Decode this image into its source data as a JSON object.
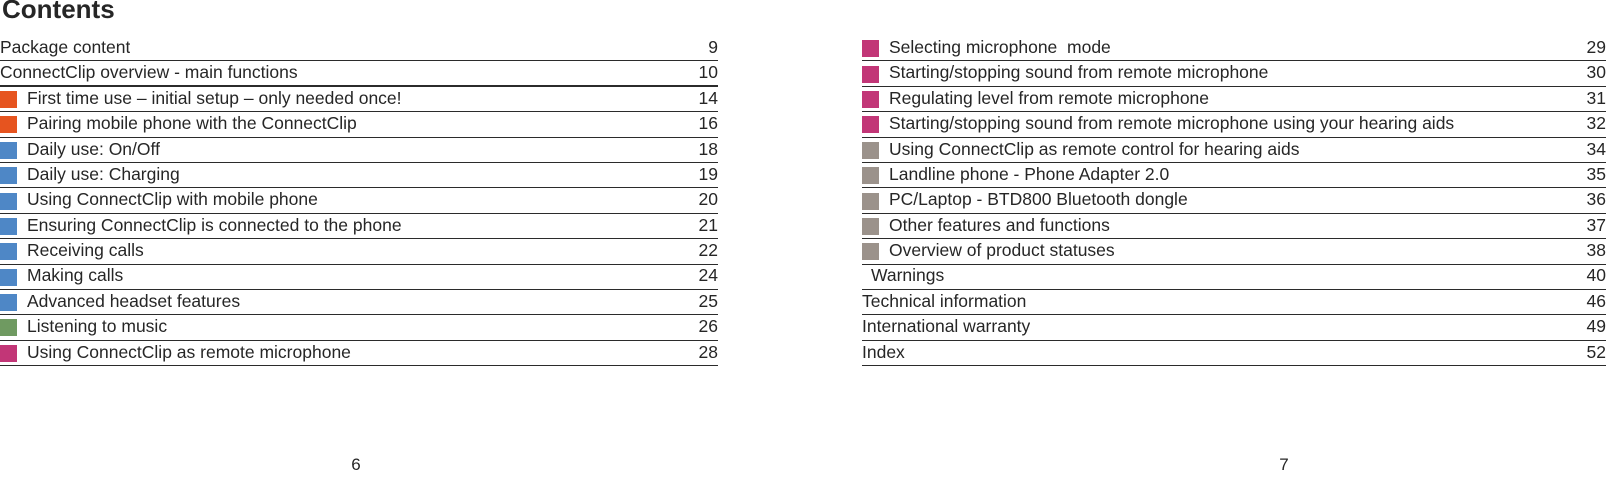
{
  "document": {
    "title": "Contents"
  },
  "colors": {
    "orange": "#E6541F",
    "blue": "#4E87C6",
    "green": "#6F9A61",
    "pink": "#C23677",
    "gray": "#9B928B",
    "text": "#262626",
    "rule": "#2B2B2B"
  },
  "pages": {
    "left": {
      "footer_page_number": "6",
      "entries": [
        {
          "label": "Package content",
          "page": "9",
          "bullet": "none"
        },
        {
          "label": "ConnectClip overview - main functions",
          "page": "10",
          "bullet": "none",
          "thick_rule": true
        },
        {
          "label": "First time use – initial setup – only needed once!",
          "page": "14",
          "bullet": "orange"
        },
        {
          "label": "Pairing mobile phone with the ConnectClip",
          "page": "16",
          "bullet": "orange"
        },
        {
          "label": "Daily use: On/Off",
          "page": "18",
          "bullet": "blue"
        },
        {
          "label": "Daily use: Charging",
          "page": "19",
          "bullet": "blue"
        },
        {
          "label": "Using ConnectClip with mobile phone",
          "page": "20",
          "bullet": "blue"
        },
        {
          "label": "Ensuring ConnectClip is connected to the phone",
          "page": "21",
          "bullet": "blue"
        },
        {
          "label": "Receiving calls",
          "page": "22",
          "bullet": "blue"
        },
        {
          "label": "Making calls",
          "page": "24",
          "bullet": "blue"
        },
        {
          "label": "Advanced headset features",
          "page": "25",
          "bullet": "blue"
        },
        {
          "label": "Listening to music",
          "page": "26",
          "bullet": "green"
        },
        {
          "label": "Using ConnectClip as remote microphone",
          "page": "28",
          "bullet": "pink"
        }
      ]
    },
    "right": {
      "footer_page_number": "7",
      "entries": [
        {
          "label": "Selecting microphone  mode",
          "page": "29",
          "bullet": "pink"
        },
        {
          "label": "Starting/stopping sound from remote microphone",
          "page": "30",
          "bullet": "pink"
        },
        {
          "label": "Regulating level from remote microphone",
          "page": "31",
          "bullet": "pink"
        },
        {
          "label": "Starting/stopping sound from remote microphone using your hearing aids",
          "page": "32",
          "bullet": "pink"
        },
        {
          "label": "Using ConnectClip as remote control for hearing aids",
          "page": "34",
          "bullet": "gray"
        },
        {
          "label": "Landline phone - Phone Adapter 2.0",
          "page": "35",
          "bullet": "gray"
        },
        {
          "label": "PC/Laptop - BTD800 Bluetooth dongle",
          "page": "36",
          "bullet": "gray"
        },
        {
          "label": "Other features and functions",
          "page": "37",
          "bullet": "gray"
        },
        {
          "label": "Overview of product statuses",
          "page": "38",
          "bullet": "gray"
        },
        {
          "label": "Warnings",
          "page": "40",
          "bullet": "none",
          "indent": true
        },
        {
          "label": "Technical information",
          "page": "46",
          "bullet": "none"
        },
        {
          "label": "International warranty",
          "page": "49",
          "bullet": "none"
        },
        {
          "label": "Index",
          "page": "52",
          "bullet": "none"
        }
      ]
    }
  }
}
